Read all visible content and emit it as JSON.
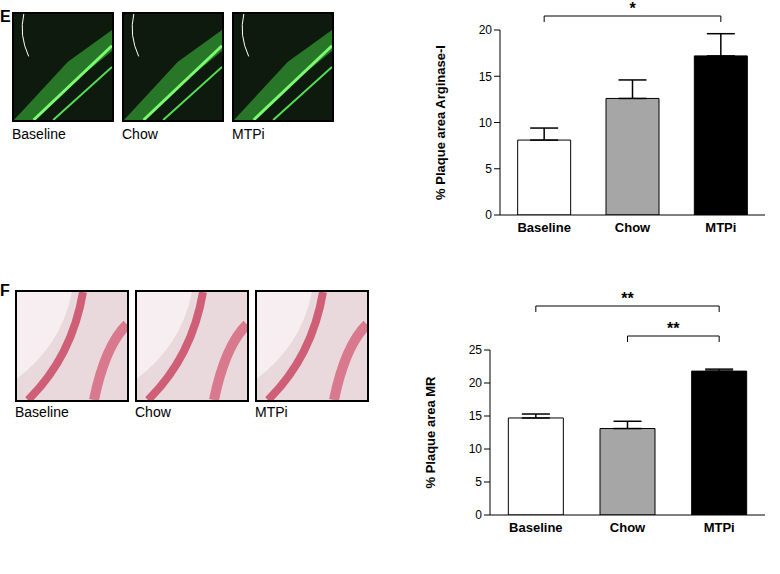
{
  "panels": [
    {
      "label": "E",
      "image_captions": [
        "Baseline",
        "Chow",
        "MTPi"
      ]
    },
    {
      "label": "F",
      "image_captions": [
        "Baseline",
        "Chow",
        "MTPi"
      ]
    }
  ],
  "chart_data": [
    {
      "type": "bar",
      "y_label": "% Plaque area Arginase-I",
      "categories": [
        "Baseline",
        "Chow",
        "MTPi"
      ],
      "values": [
        8.1,
        12.6,
        17.2
      ],
      "errors": [
        1.3,
        2.0,
        2.4
      ],
      "colors": [
        "#ffffff",
        "#a6a6a6",
        "#000000"
      ],
      "ylim": [
        0,
        20
      ],
      "yticks": [
        0,
        5,
        10,
        15,
        20
      ],
      "grid": false,
      "significance": [
        {
          "from": "Baseline",
          "to": "MTPi",
          "label": "*"
        }
      ]
    },
    {
      "type": "bar",
      "y_label": "% Plaque area MR",
      "categories": [
        "Baseline",
        "Chow",
        "MTPi"
      ],
      "values": [
        14.7,
        13.1,
        21.8
      ],
      "errors": [
        0.6,
        1.1,
        0.3
      ],
      "colors": [
        "#ffffff",
        "#a6a6a6",
        "#000000"
      ],
      "ylim": [
        0,
        25
      ],
      "yticks": [
        0,
        5,
        10,
        15,
        20,
        25
      ],
      "grid": false,
      "significance": [
        {
          "from": "Chow",
          "to": "MTPi",
          "label": "**"
        },
        {
          "from": "Baseline",
          "to": "MTPi",
          "label": "**"
        }
      ]
    }
  ]
}
